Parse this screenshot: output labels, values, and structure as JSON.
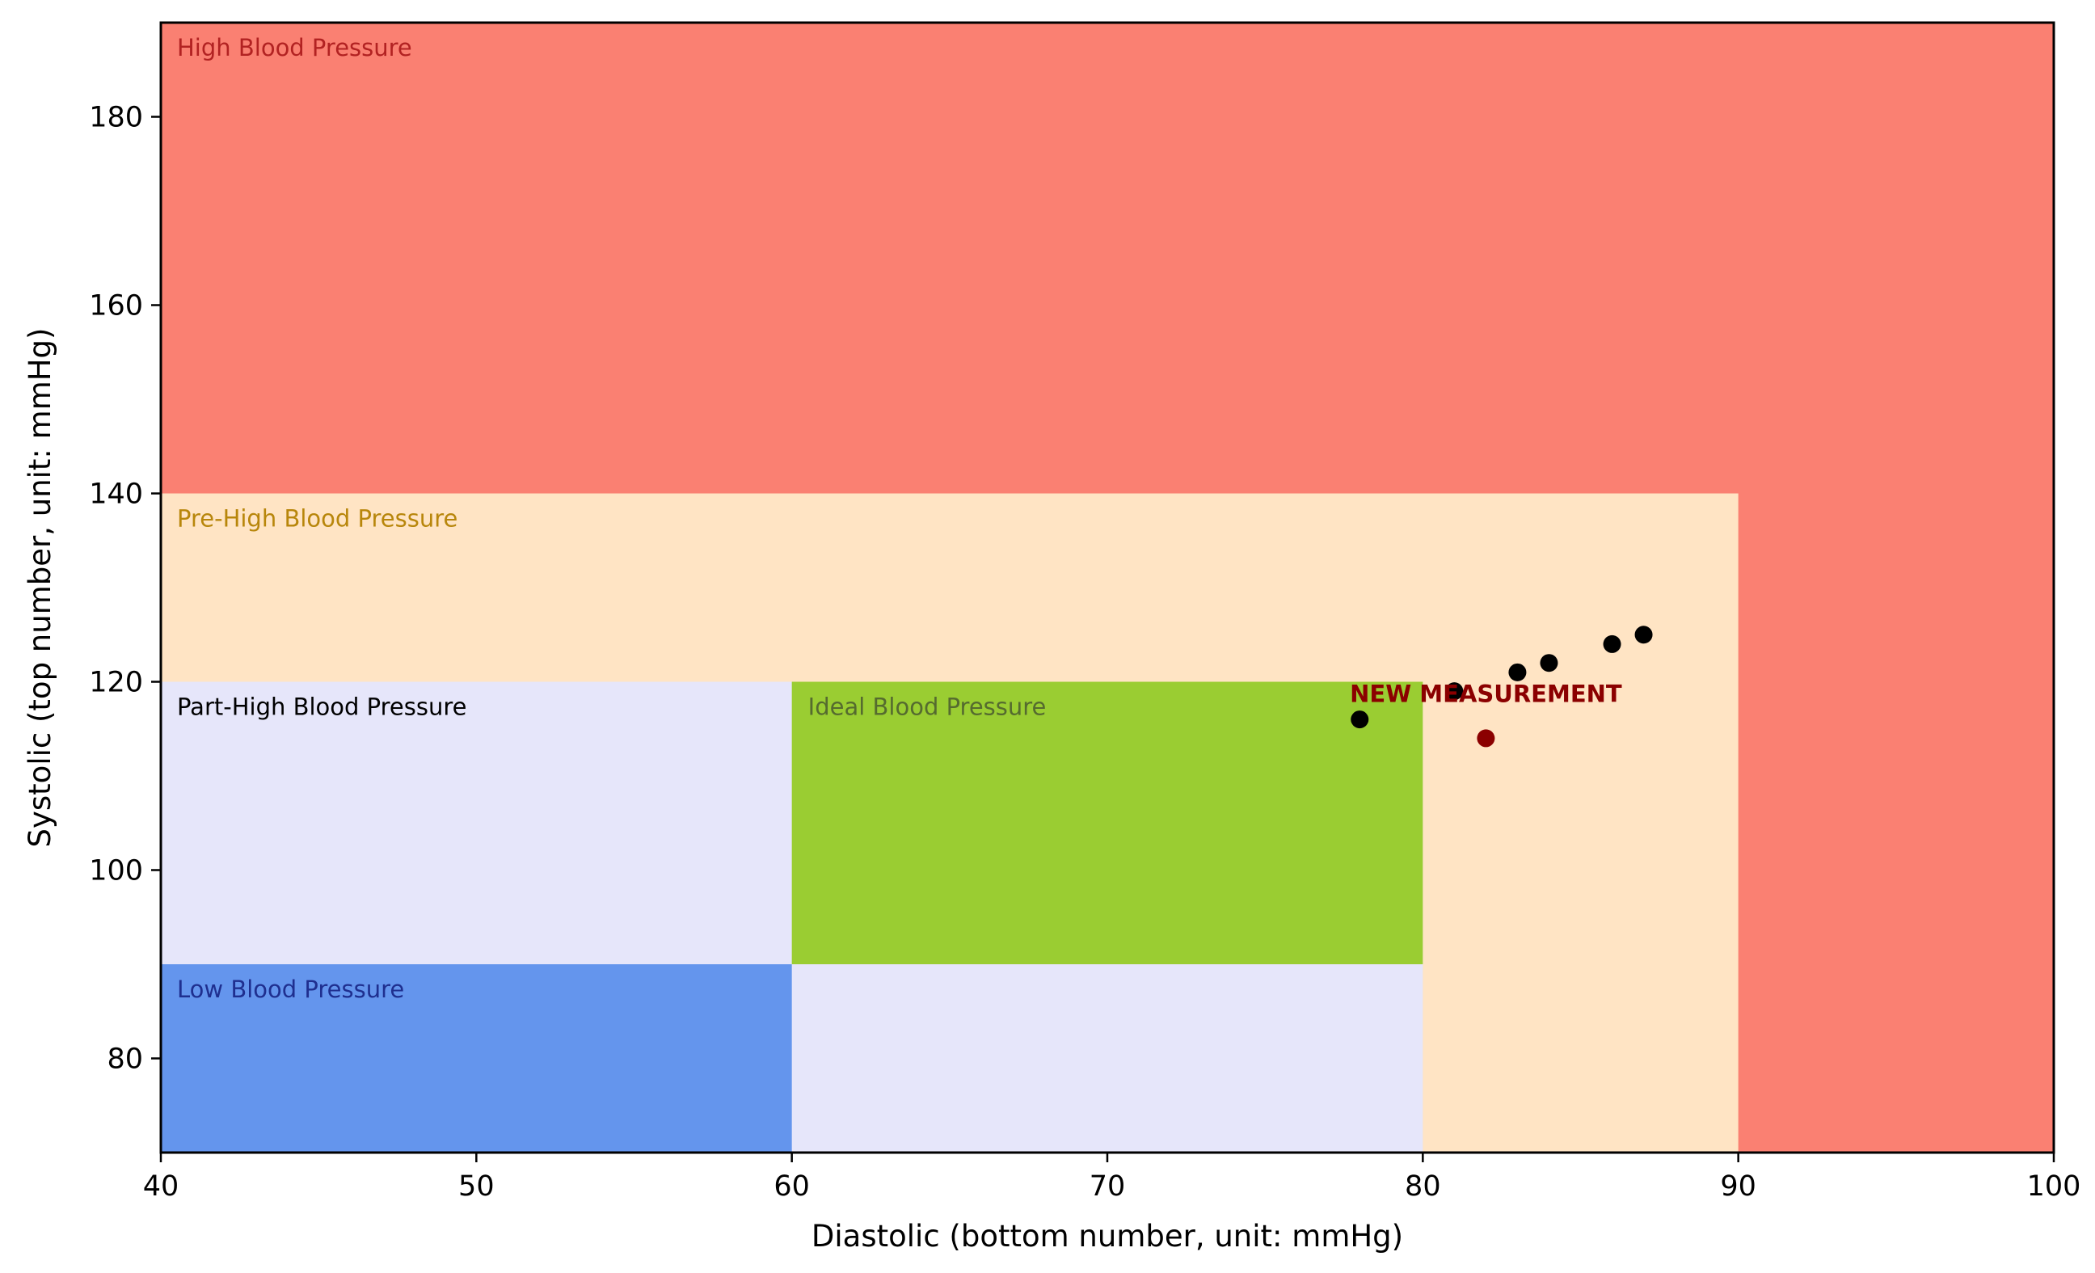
{
  "chart_data": {
    "type": "scatter",
    "title": "",
    "xlabel": "Diastolic (bottom number, unit: mmHg)",
    "ylabel": "Systolic (top number, unit: mmHg)",
    "xlim": [
      40,
      100
    ],
    "ylim": [
      70,
      190
    ],
    "xticks": [
      40,
      50,
      60,
      70,
      80,
      90,
      100
    ],
    "yticks": [
      80,
      100,
      120,
      140,
      160,
      180
    ],
    "grid": false,
    "zones": [
      {
        "name": "High Blood Pressure",
        "x": [
          40,
          100
        ],
        "y": [
          70,
          190
        ],
        "color": "#fa8072",
        "label_color": "#b22222",
        "show_label": true
      },
      {
        "name": "Pre-High Blood Pressure",
        "x": [
          40,
          90
        ],
        "y": [
          70,
          140
        ],
        "color": "#ffe4c4",
        "label_color": "#b8860b",
        "show_label": true
      },
      {
        "name": "Part-High Blood Pressure",
        "x": [
          40,
          80
        ],
        "y": [
          70,
          120
        ],
        "color": "#e6e6fa",
        "label_color": "#000000",
        "show_label": true
      },
      {
        "name": "Ideal Blood Pressure",
        "x": [
          60,
          80
        ],
        "y": [
          90,
          120
        ],
        "color": "#9acd32",
        "label_color": "#556b2f",
        "show_label": true
      },
      {
        "name": "Low Blood Pressure",
        "x": [
          40,
          60
        ],
        "y": [
          70,
          90
        ],
        "color": "#6495ed",
        "label_color": "#1f2f8f",
        "show_label": true
      }
    ],
    "series": [
      {
        "color": "#000000",
        "points": [
          {
            "x": 78,
            "y": 116
          },
          {
            "x": 81,
            "y": 119
          },
          {
            "x": 83,
            "y": 121
          },
          {
            "x": 84,
            "y": 122
          },
          {
            "x": 86,
            "y": 124
          },
          {
            "x": 87,
            "y": 125
          }
        ]
      },
      {
        "color": "#8b0000",
        "points": [
          {
            "x": 82,
            "y": 114
          }
        ]
      }
    ],
    "annotations": [
      {
        "text": "NEW MEASUREMENT",
        "x": 82,
        "y": 117,
        "color": "#8b0000"
      }
    ]
  }
}
